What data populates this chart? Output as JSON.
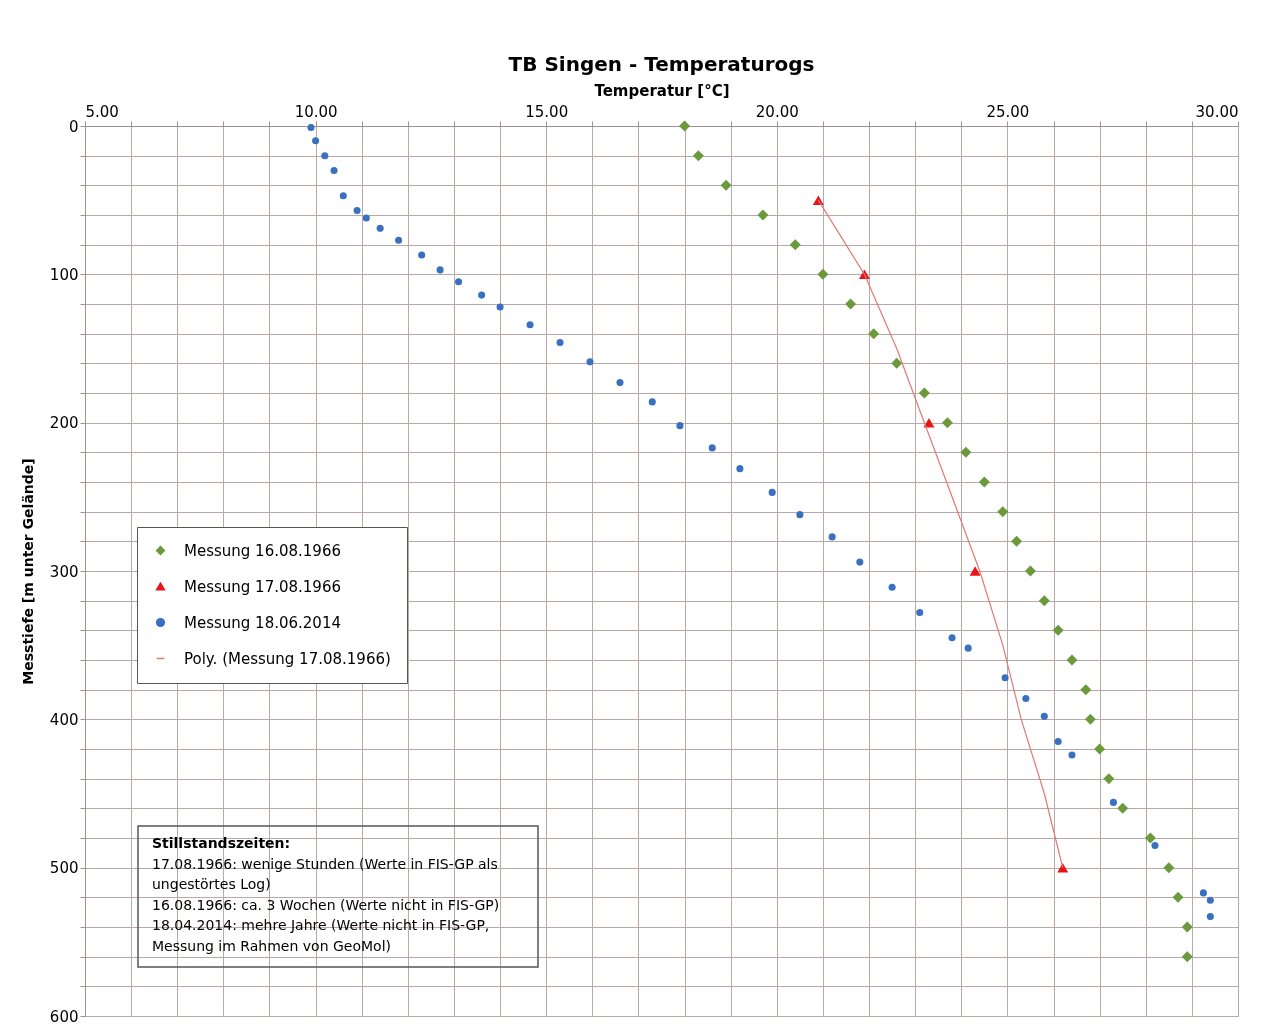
{
  "chart_data": {
    "type": "scatter",
    "title": "TB Singen - Temperaturogs",
    "xlabel": "Temperatur [°C]",
    "ylabel": "Messtiefe [m unter Gelände]",
    "xlim": [
      5,
      30
    ],
    "ylim": [
      600,
      0
    ],
    "xticks": [
      {
        "value": 5,
        "label": "5.00"
      },
      {
        "value": 6,
        "label": null
      },
      {
        "value": 7,
        "label": null
      },
      {
        "value": 8,
        "label": null
      },
      {
        "value": 9,
        "label": null
      },
      {
        "value": 10,
        "label": "10.00"
      },
      {
        "value": 11,
        "label": null
      },
      {
        "value": 12,
        "label": null
      },
      {
        "value": 13,
        "label": null
      },
      {
        "value": 14,
        "label": null
      },
      {
        "value": 15,
        "label": "15.00"
      },
      {
        "value": 16,
        "label": null
      },
      {
        "value": 17,
        "label": null
      },
      {
        "value": 18,
        "label": null
      },
      {
        "value": 19,
        "label": null
      },
      {
        "value": 20,
        "label": "20.00"
      },
      {
        "value": 21,
        "label": null
      },
      {
        "value": 22,
        "label": null
      },
      {
        "value": 23,
        "label": null
      },
      {
        "value": 24,
        "label": null
      },
      {
        "value": 25,
        "label": "25.00"
      },
      {
        "value": 26,
        "label": null
      },
      {
        "value": 27,
        "label": null
      },
      {
        "value": 28,
        "label": null
      },
      {
        "value": 29,
        "label": null
      },
      {
        "value": 30,
        "label": "30.00"
      }
    ],
    "yticks": [
      0,
      {
        "value": 20,
        "label": null
      },
      {
        "value": 40,
        "label": null
      },
      {
        "value": 60,
        "label": null
      },
      {
        "value": 80,
        "label": null
      },
      100,
      {
        "value": 120,
        "label": null
      },
      {
        "value": 140,
        "label": null
      },
      {
        "value": 160,
        "label": null
      },
      {
        "value": 180,
        "label": null
      },
      200,
      {
        "value": 220,
        "label": null
      },
      {
        "value": 240,
        "label": null
      },
      {
        "value": 260,
        "label": null
      },
      {
        "value": 280,
        "label": null
      },
      300,
      {
        "value": 320,
        "label": null
      },
      {
        "value": 340,
        "label": null
      },
      {
        "value": 360,
        "label": null
      },
      {
        "value": 380,
        "label": null
      },
      400,
      {
        "value": 420,
        "label": null
      },
      {
        "value": 440,
        "label": null
      },
      {
        "value": 460,
        "label": null
      },
      {
        "value": 480,
        "label": null
      },
      500,
      {
        "value": 520,
        "label": null
      },
      {
        "value": 540,
        "label": null
      },
      {
        "value": 560,
        "label": null
      },
      {
        "value": 580,
        "label": null
      },
      600
    ],
    "grid": true,
    "legend": "left",
    "annotations": [
      "Stillstandszeiten:",
      "17.08.1966: wenige Stunden (Werte in FIS-GP als ungestörtes Log)",
      "16.08.1966: ca. 3 Wochen (Werte nicht in FIS-GP)",
      "18.04.2014: mehre Jahre (Werte nicht in FIS-GP, Messung im Rahmen von GeoMol)"
    ],
    "series": [
      {
        "name": "Messung 16.08.1966",
        "marker": "diamond",
        "color": "#6a9a3a",
        "x": [
          18.0,
          18.3,
          18.9,
          19.7,
          20.4,
          21.0,
          21.6,
          22.1,
          22.6,
          23.2,
          23.7,
          24.1,
          24.5,
          24.9,
          25.2,
          25.5,
          25.8,
          26.1,
          26.4,
          26.7,
          26.8,
          27.0,
          27.2,
          27.5,
          28.1,
          28.5,
          28.7,
          28.9,
          28.9
        ],
        "values": [
          0,
          20,
          40,
          60,
          80,
          100,
          120,
          140,
          160,
          180,
          200,
          220,
          240,
          260,
          280,
          300,
          320,
          340,
          360,
          380,
          400,
          420,
          440,
          460,
          480,
          500,
          520,
          540,
          560
        ]
      },
      {
        "name": "Messung 17.08.1966",
        "marker": "triangle",
        "color": "#e8141c",
        "x": [
          20.9,
          21.9,
          23.3,
          24.3,
          26.2
        ],
        "values": [
          50,
          100,
          200,
          300,
          500
        ]
      },
      {
        "name": "Messung 18.06.2014",
        "marker": "circle",
        "color": "#3a70c0",
        "x": [
          9.9,
          10.0,
          10.2,
          10.4,
          10.6,
          10.9,
          11.1,
          11.4,
          11.8,
          12.3,
          12.7,
          13.1,
          13.6,
          14.0,
          14.65,
          15.3,
          15.95,
          16.6,
          17.3,
          17.9,
          18.6,
          19.2,
          19.9,
          20.5,
          21.2,
          21.8,
          22.5,
          23.1,
          23.8,
          24.15,
          24.95,
          25.4,
          25.8,
          26.1,
          26.4,
          27.3,
          28.2,
          29.25,
          29.4,
          29.4
        ],
        "values": [
          1,
          10,
          20,
          30,
          47,
          57,
          62,
          69,
          77,
          87,
          97,
          105,
          114,
          122,
          134,
          146,
          159,
          173,
          186,
          202,
          217,
          231,
          247,
          262,
          277,
          294,
          311,
          328,
          345,
          352,
          372,
          386,
          398,
          415,
          424,
          456,
          485,
          517,
          522,
          533
        ]
      },
      {
        "name": "Poly. (Messung 17.08.1966)",
        "type": "line",
        "marker": "none",
        "line_style": "solid",
        "color": "#e07878",
        "x": [
          20.9,
          21.9,
          22.6,
          23.2,
          23.8,
          24.4,
          24.9,
          25.3,
          25.8,
          26.2
        ],
        "values": [
          50,
          100,
          150,
          200,
          250,
          300,
          350,
          400,
          450,
          500
        ]
      }
    ]
  }
}
